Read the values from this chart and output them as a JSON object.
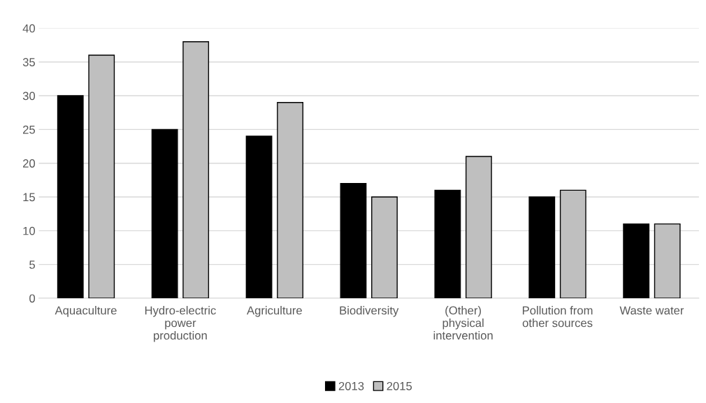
{
  "chart_data": {
    "type": "bar",
    "categories": [
      "Aquaculture",
      "Hydro-electric\npower\nproduction",
      "Agriculture",
      "Biodiversity",
      "(Other)\nphysical\nintervention",
      "Pollution from\nother sources",
      "Waste water"
    ],
    "series": [
      {
        "name": "2013",
        "color": "#000000",
        "values": [
          30,
          25,
          24,
          17,
          16,
          15,
          11
        ]
      },
      {
        "name": "2015",
        "color": "#bfbfbf",
        "values": [
          36,
          38,
          29,
          15,
          21,
          16,
          11
        ]
      }
    ],
    "ylim": [
      0,
      40
    ],
    "yticks": [
      0,
      5,
      10,
      15,
      20,
      25,
      30,
      35,
      40
    ],
    "grid": "y",
    "legend": "bottom"
  }
}
